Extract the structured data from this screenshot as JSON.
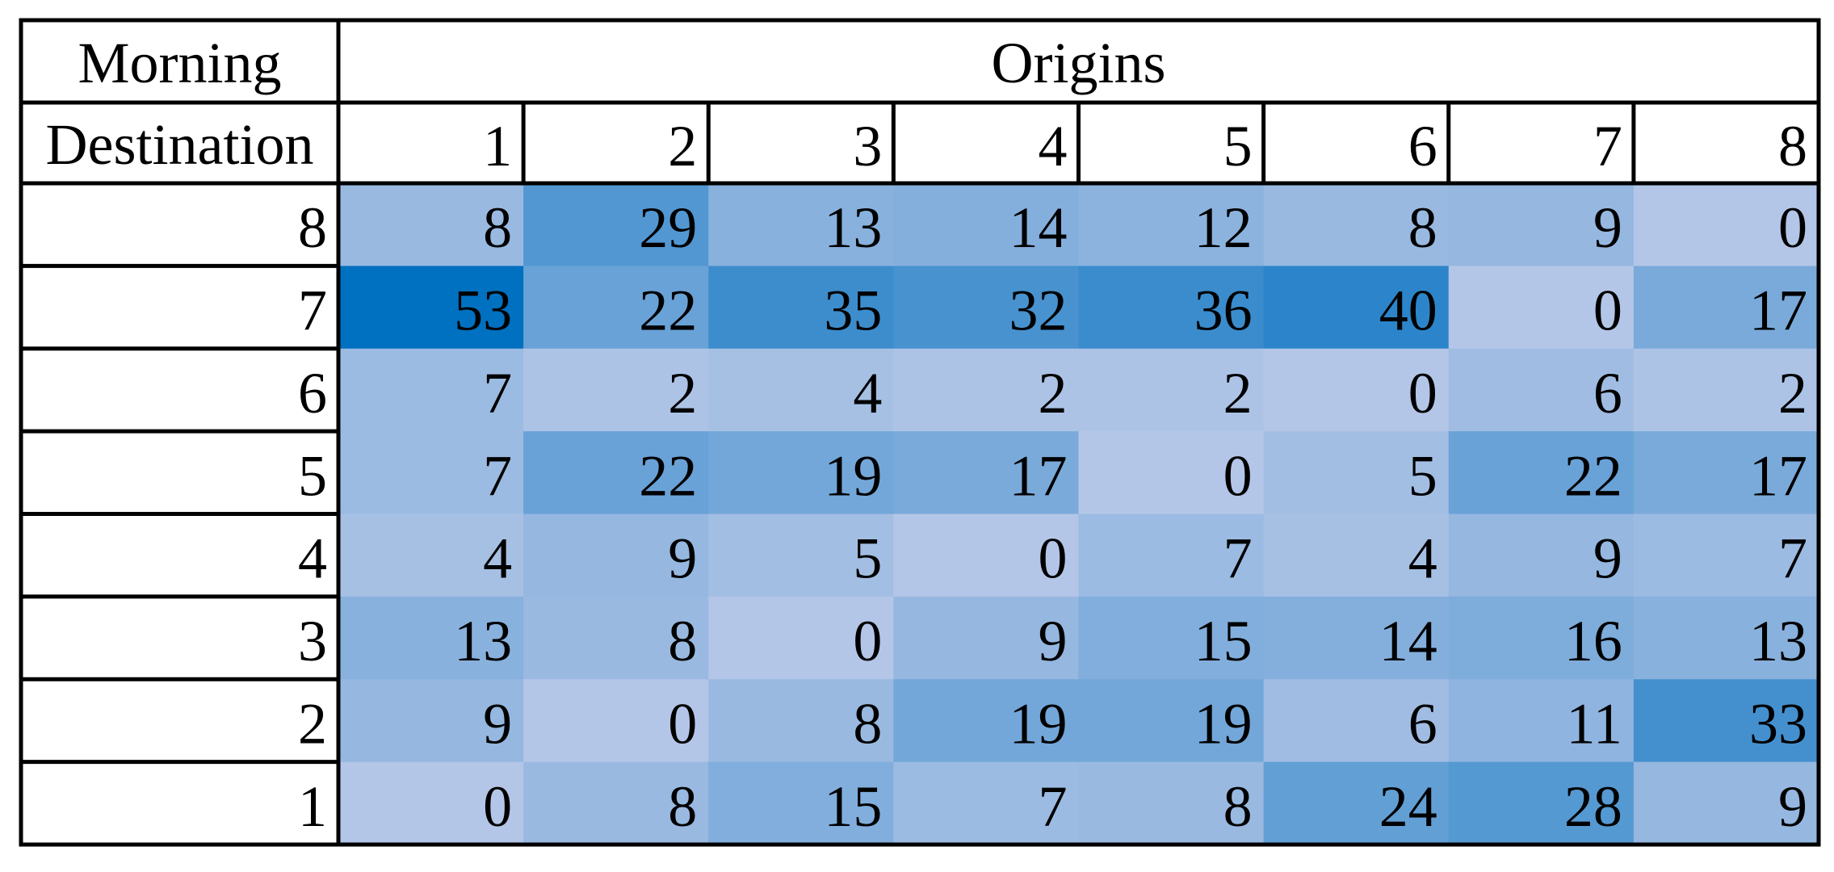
{
  "chart_data": {
    "type": "heatmap",
    "corner_label_top": "Morning",
    "corner_label_bottom": "Destination",
    "column_group_label": "Origins",
    "columns": [
      "1",
      "2",
      "3",
      "4",
      "5",
      "6",
      "7",
      "8"
    ],
    "rows": [
      "8",
      "7",
      "6",
      "5",
      "4",
      "3",
      "2",
      "1"
    ],
    "values": [
      [
        8,
        29,
        13,
        14,
        12,
        8,
        9,
        0
      ],
      [
        53,
        22,
        35,
        32,
        36,
        40,
        0,
        17
      ],
      [
        7,
        2,
        4,
        2,
        2,
        0,
        6,
        2
      ],
      [
        7,
        22,
        19,
        17,
        0,
        5,
        22,
        17
      ],
      [
        4,
        9,
        5,
        0,
        7,
        4,
        9,
        7
      ],
      [
        13,
        8,
        0,
        9,
        15,
        14,
        16,
        13
      ],
      [
        9,
        0,
        8,
        19,
        19,
        6,
        11,
        33
      ],
      [
        0,
        8,
        15,
        7,
        8,
        24,
        28,
        9
      ]
    ],
    "color_scale": {
      "min_color": "#b4c6e7",
      "max_color": "#0070c0"
    }
  }
}
